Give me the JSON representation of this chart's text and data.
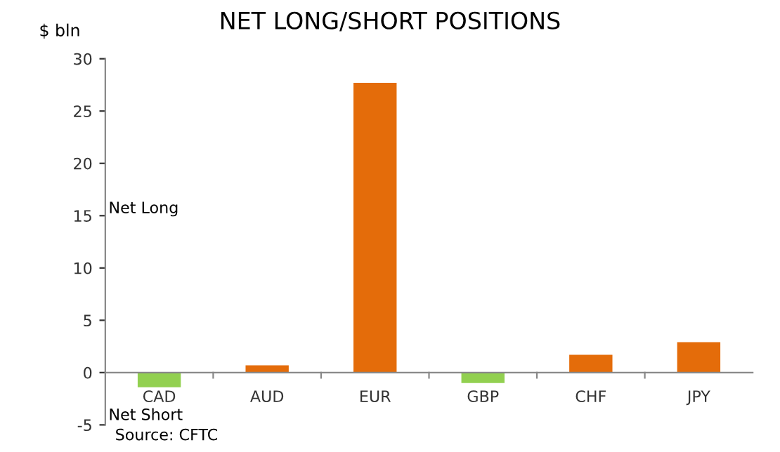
{
  "chart_data": {
    "type": "bar",
    "title": "NET LONG/SHORT POSITIONS",
    "ylabel": "$ bln",
    "categories": [
      "CAD",
      "AUD",
      "EUR",
      "GBP",
      "CHF",
      "JPY"
    ],
    "values": [
      -1.4,
      0.7,
      27.7,
      -1.0,
      1.7,
      2.9
    ],
    "colors": [
      "#92d050",
      "#e46c0a",
      "#e46c0a",
      "#92d050",
      "#e46c0a",
      "#e46c0a"
    ],
    "ylim": [
      -5,
      30
    ],
    "yticks": [
      -5,
      0,
      5,
      10,
      15,
      20,
      25,
      30
    ],
    "grid": false,
    "legend": false,
    "annotations": [
      "Net Long",
      "Net Short",
      "Source: CFTC"
    ]
  }
}
